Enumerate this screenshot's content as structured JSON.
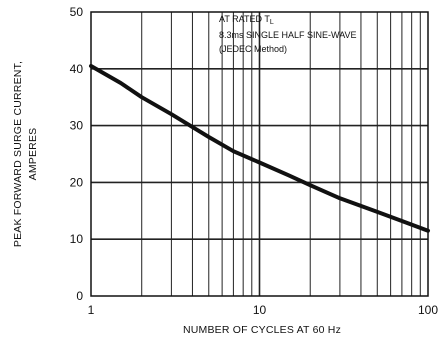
{
  "chart_data": {
    "type": "line",
    "title": "",
    "xlabel": "NUMBER OF CYCLES AT 60 Hz",
    "ylabel_lines": [
      "PEAK FORWARD SURGE  CURRENT,",
      "AMPERES"
    ],
    "x_scale": "log",
    "xlim": [
      1,
      100
    ],
    "ylim": [
      0,
      50
    ],
    "x_ticks": [
      1,
      10,
      100
    ],
    "x_tick_labels": [
      "1",
      "10",
      "100"
    ],
    "y_ticks": [
      0,
      10,
      20,
      30,
      40,
      50
    ],
    "y_tick_labels": [
      "0",
      "10",
      "20",
      "30",
      "40",
      "50"
    ],
    "grid": true,
    "annotation": {
      "line1_main": "AT RATED T",
      "line1_sub": "L",
      "line2": "8.3ms SINGLE HALF SINE-WAVE",
      "line3": "(JEDEC Method)"
    },
    "series": [
      {
        "x": [
          1,
          1.5,
          2,
          3,
          5,
          7,
          10,
          15,
          20,
          30,
          50,
          70,
          100
        ],
        "y": [
          40.5,
          37.5,
          35,
          32,
          28,
          25.5,
          23.5,
          21.2,
          19.5,
          17.2,
          14.8,
          13.2,
          11.5
        ]
      }
    ]
  }
}
